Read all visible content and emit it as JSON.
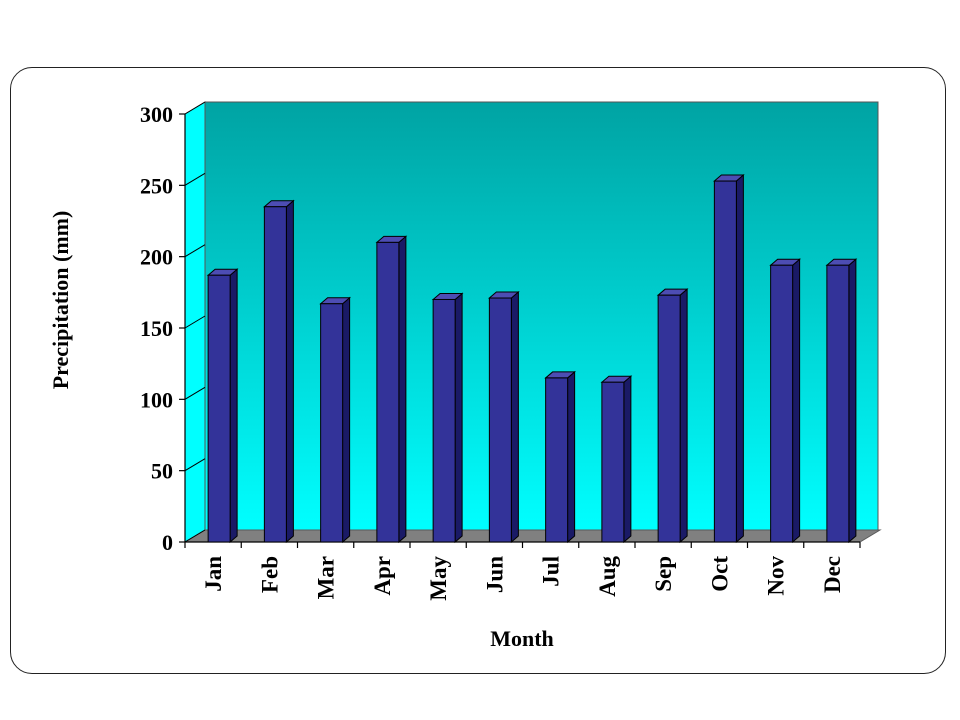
{
  "chart_data": {
    "type": "bar",
    "title": "",
    "xlabel": "Month",
    "ylabel": "Precipitation (mm)",
    "categories": [
      "Jan",
      "Feb",
      "Mar",
      "Apr",
      "May",
      "Jun",
      "Jul",
      "Aug",
      "Sep",
      "Oct",
      "Nov",
      "Dec"
    ],
    "values": [
      187,
      235,
      167,
      210,
      170,
      171,
      115,
      112,
      173,
      253,
      194,
      194
    ],
    "ylim": [
      0,
      300
    ],
    "yticks": [
      0,
      50,
      100,
      150,
      200,
      250,
      300
    ],
    "grid": false,
    "legend": "none",
    "colors": {
      "bar_front": "#333399",
      "bar_side": "#1a1a66",
      "bar_top": "#4d4db3",
      "wall_top": "#00a3a3",
      "wall_bottom": "#00ffff",
      "floor": "#808080",
      "floor_edge": "#5a5a5a"
    }
  }
}
